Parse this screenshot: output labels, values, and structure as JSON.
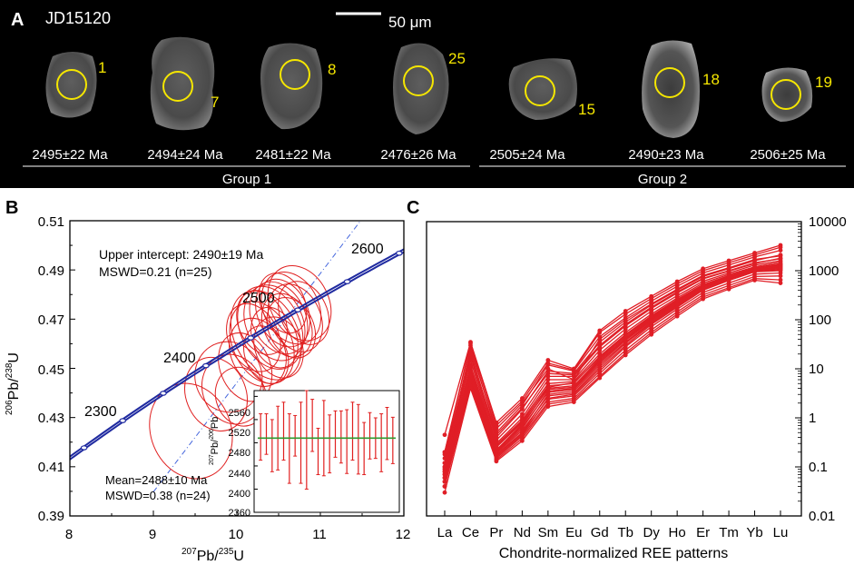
{
  "panel_a": {
    "label": "A",
    "sample_id": "JD15120",
    "scale_bar_label": "50 μm",
    "grains": [
      {
        "spot": "1",
        "age": "2495±22 Ma"
      },
      {
        "spot": "7",
        "age": "2494±24 Ma"
      },
      {
        "spot": "8",
        "age": "2481±22 Ma"
      },
      {
        "spot": "25",
        "age": "2476±26 Ma"
      },
      {
        "spot": "15",
        "age": "2505±24 Ma"
      },
      {
        "spot": "18",
        "age": "2490±23 Ma"
      },
      {
        "spot": "19",
        "age": "2506±25 Ma"
      }
    ],
    "group1_label": "Group 1",
    "group2_label": "Group 2",
    "ring_color": "#f5e600"
  },
  "chart_data": [
    {
      "type": "scatter",
      "panel": "B",
      "xlabel_sup": "207",
      "xlabel_main": "Pb/",
      "xlabel_sup2": "235",
      "xlabel_end": "U",
      "ylabel_sup": "206",
      "ylabel_main": "Pb/",
      "ylabel_sup2": "238",
      "ylabel_end": "U",
      "xlim": [
        8,
        12
      ],
      "ylim": [
        0.39,
        0.51
      ],
      "xticks": [
        "8",
        "9",
        "10",
        "11",
        "12"
      ],
      "yticks": [
        "0.39",
        "0.41",
        "0.43",
        "0.45",
        "0.47",
        "0.49",
        "0.51"
      ],
      "concordia_ages": [
        "2300",
        "2400",
        "2500",
        "2600"
      ],
      "annotation_upper": "Upper intercept: 2490±19 Ma",
      "annotation_mswd": "MSWD=0.21 (n=25)",
      "annotation_mean": "Mean=2488±10 Ma",
      "annotation_mean_mswd": "MSWD=0.38 (n=24)",
      "ellipses": [
        {
          "x": 9.45,
          "y": 0.4245,
          "rx": 0.48,
          "ry": 0.0062,
          "rot": -22
        },
        {
          "x": 9.75,
          "y": 0.4395,
          "rx": 0.36,
          "ry": 0.0048,
          "rot": -22
        },
        {
          "x": 9.95,
          "y": 0.4415,
          "rx": 0.36,
          "ry": 0.0045,
          "rot": -20
        },
        {
          "x": 9.9,
          "y": 0.4465,
          "rx": 0.4,
          "ry": 0.0045,
          "rot": -18
        },
        {
          "x": 10.05,
          "y": 0.4385,
          "rx": 0.3,
          "ry": 0.0038,
          "rot": -20
        },
        {
          "x": 10.25,
          "y": 0.4565,
          "rx": 0.32,
          "ry": 0.0045,
          "rot": -25
        },
        {
          "x": 10.3,
          "y": 0.4605,
          "rx": 0.35,
          "ry": 0.0055,
          "rot": -25
        },
        {
          "x": 10.35,
          "y": 0.4635,
          "rx": 0.38,
          "ry": 0.006,
          "rot": -26
        },
        {
          "x": 10.4,
          "y": 0.4665,
          "rx": 0.36,
          "ry": 0.0055,
          "rot": -24
        },
        {
          "x": 10.45,
          "y": 0.4685,
          "rx": 0.34,
          "ry": 0.005,
          "rot": -24
        },
        {
          "x": 10.5,
          "y": 0.4705,
          "rx": 0.32,
          "ry": 0.0048,
          "rot": -25
        },
        {
          "x": 10.55,
          "y": 0.4725,
          "rx": 0.3,
          "ry": 0.0045,
          "rot": -25
        },
        {
          "x": 10.6,
          "y": 0.4675,
          "rx": 0.28,
          "ry": 0.0042,
          "rot": -24
        },
        {
          "x": 10.65,
          "y": 0.4745,
          "rx": 0.33,
          "ry": 0.0048,
          "rot": -26
        },
        {
          "x": 10.7,
          "y": 0.4705,
          "rx": 0.3,
          "ry": 0.0045,
          "rot": -25
        },
        {
          "x": 10.75,
          "y": 0.4765,
          "rx": 0.35,
          "ry": 0.005,
          "rot": -27
        },
        {
          "x": 10.5,
          "y": 0.4585,
          "rx": 0.28,
          "ry": 0.004,
          "rot": -22
        },
        {
          "x": 10.2,
          "y": 0.4625,
          "rx": 0.3,
          "ry": 0.0045,
          "rot": -24
        },
        {
          "x": 10.45,
          "y": 0.4625,
          "rx": 0.26,
          "ry": 0.004,
          "rot": -23
        },
        {
          "x": 10.35,
          "y": 0.4555,
          "rx": 0.25,
          "ry": 0.0038,
          "rot": -22
        },
        {
          "x": 10.65,
          "y": 0.4665,
          "rx": 0.27,
          "ry": 0.004,
          "rot": -24
        },
        {
          "x": 10.8,
          "y": 0.4725,
          "rx": 0.28,
          "ry": 0.0042,
          "rot": -25
        },
        {
          "x": 10.55,
          "y": 0.4765,
          "rx": 0.26,
          "ry": 0.004,
          "rot": -25
        },
        {
          "x": 10.3,
          "y": 0.4685,
          "rx": 0.28,
          "ry": 0.0042,
          "rot": -24
        },
        {
          "x": 10.1,
          "y": 0.4505,
          "rx": 0.3,
          "ry": 0.0045,
          "rot": -22
        }
      ],
      "inset": {
        "ylabel_sup": "207",
        "ylabel_main": "Pb/",
        "ylabel_sup2": "206",
        "ylabel_end": "Pb",
        "ylim": [
          2360,
          2570
        ],
        "yticks": [
          "2560",
          "2520",
          "2480",
          "2440",
          "2400",
          "2360"
        ],
        "mean": 2488,
        "values": [
          2490,
          2495,
          2475,
          2488,
          2500,
          2470,
          2492,
          2480,
          2485,
          2510,
          2465,
          2488,
          2478,
          2495,
          2490,
          2482,
          2500,
          2486,
          2470,
          2492,
          2488,
          2480,
          2496,
          2484
        ],
        "errors": [
          40,
          35,
          45,
          55,
          50,
          60,
          35,
          70,
          85,
          45,
          40,
          65,
          50,
          40,
          45,
          55,
          50,
          60,
          45,
          40,
          35,
          50,
          45,
          40
        ]
      },
      "colors": {
        "concordia": "#1f2aa0",
        "ellipse": "#e02020",
        "discordia": "#4466dd",
        "mean_line": "#2e9a2e"
      }
    },
    {
      "type": "line",
      "panel": "C",
      "title": "Chondrite-normalized REE patterns",
      "categories": [
        "La",
        "Ce",
        "Pr",
        "Nd",
        "Sm",
        "Eu",
        "Gd",
        "Tb",
        "Dy",
        "Ho",
        "Er",
        "Tm",
        "Yb",
        "Lu"
      ],
      "yscale": "log",
      "ylim": [
        0.01,
        10000
      ],
      "yticks": [
        "10000",
        "1000",
        "100",
        "10",
        "1",
        "0.1",
        "0.01"
      ],
      "color": "#e01e26",
      "series": [
        {
          "values": [
            0.45,
            35,
            0.8,
            2.5,
            15,
            10,
            60,
            150,
            300,
            600,
            1100,
            1600,
            2300,
            3300
          ]
        },
        {
          "values": [
            0.2,
            30,
            0.5,
            1.8,
            12,
            9,
            45,
            110,
            240,
            480,
            900,
            1300,
            1900,
            2600
          ]
        },
        {
          "values": [
            0.15,
            22,
            0.4,
            1.5,
            9,
            8,
            35,
            90,
            200,
            400,
            760,
            1100,
            1600,
            2100
          ]
        },
        {
          "values": [
            0.12,
            18,
            0.35,
            1.2,
            7,
            7,
            28,
            75,
            170,
            350,
            680,
            980,
            1400,
            1800
          ]
        },
        {
          "values": [
            0.1,
            15,
            0.3,
            1.0,
            6,
            6,
            24,
            65,
            150,
            310,
            610,
            900,
            1300,
            1600
          ]
        },
        {
          "values": [
            0.09,
            12,
            0.28,
            0.9,
            5,
            5.5,
            20,
            55,
            130,
            280,
            560,
            840,
            1200,
            1500
          ]
        },
        {
          "values": [
            0.08,
            10,
            0.25,
            0.8,
            4.5,
            5,
            18,
            50,
            120,
            260,
            520,
            790,
            1150,
            1400
          ]
        },
        {
          "values": [
            0.07,
            8,
            0.22,
            0.7,
            4,
            4.5,
            16,
            45,
            110,
            240,
            490,
            750,
            1100,
            1300
          ]
        },
        {
          "values": [
            0.06,
            7,
            0.2,
            0.6,
            3.5,
            4,
            14,
            40,
            100,
            220,
            460,
            710,
            1050,
            1200
          ]
        },
        {
          "values": [
            0.05,
            6,
            0.18,
            0.5,
            3,
            3.5,
            12,
            35,
            90,
            200,
            430,
            670,
            1000,
            1100
          ]
        },
        {
          "values": [
            0.04,
            5,
            0.16,
            0.45,
            2.5,
            3,
            10,
            30,
            80,
            180,
            400,
            630,
            950,
            1000
          ]
        },
        {
          "values": [
            0.12,
            25,
            0.6,
            2,
            10,
            6,
            40,
            100,
            210,
            420,
            800,
            1150,
            1700,
            2000
          ]
        },
        {
          "values": [
            0.18,
            20,
            0.45,
            1.6,
            8,
            7.5,
            30,
            80,
            180,
            370,
            700,
            1000,
            1450,
            1750
          ]
        },
        {
          "values": [
            0.1,
            9,
            0.22,
            0.75,
            3.8,
            4.2,
            15,
            42,
            105,
            230,
            470,
            720,
            1050,
            1250
          ]
        },
        {
          "values": [
            0.08,
            6.5,
            0.19,
            0.55,
            2.8,
            3.2,
            11,
            33,
            85,
            190,
            410,
            640,
            960,
            1050
          ]
        },
        {
          "values": [
            0.06,
            5.5,
            0.17,
            0.48,
            2.4,
            2.8,
            9,
            28,
            72,
            165,
            360,
            560,
            850,
            900
          ]
        },
        {
          "values": [
            0.05,
            5,
            0.15,
            0.42,
            2.1,
            2.5,
            8,
            24,
            62,
            145,
            320,
            500,
            760,
            780
          ]
        },
        {
          "values": [
            0.04,
            4.5,
            0.14,
            0.38,
            1.9,
            2.3,
            7,
            21,
            55,
            130,
            290,
            450,
            690,
            650
          ]
        },
        {
          "values": [
            0.03,
            4,
            0.13,
            0.34,
            1.7,
            2.1,
            6.5,
            19,
            50,
            118,
            265,
            420,
            640,
            560
          ]
        },
        {
          "values": [
            0.2,
            33,
            0.7,
            2.2,
            13,
            9.5,
            55,
            130,
            270,
            540,
            1000,
            1450,
            2100,
            3000
          ]
        },
        {
          "values": [
            0.09,
            11,
            0.26,
            0.85,
            4.2,
            5.2,
            17,
            48,
            115,
            250,
            500,
            770,
            1120,
            1350
          ]
        },
        {
          "values": [
            0.07,
            7.5,
            0.21,
            0.65,
            3.3,
            3.8,
            13,
            38,
            95,
            210,
            440,
            690,
            1020,
            1150
          ]
        }
      ]
    }
  ]
}
